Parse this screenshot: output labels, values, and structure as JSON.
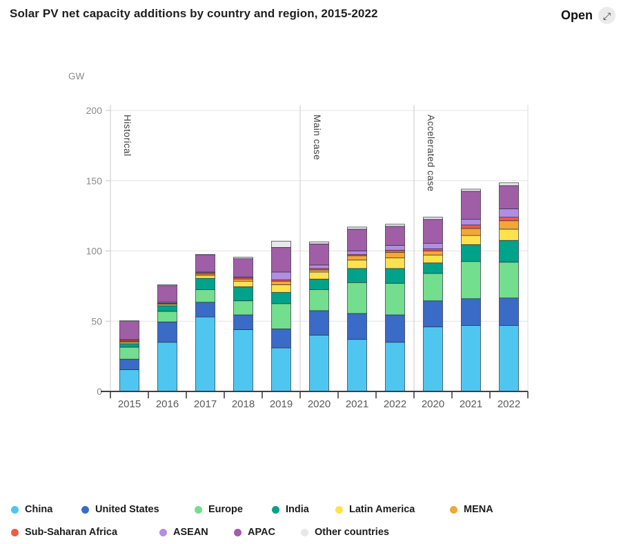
{
  "header": {
    "title": "Solar PV net capacity additions by country and region, 2015-2022",
    "open_label": "Open",
    "open_icon": "⤢"
  },
  "chart_data": {
    "type": "bar",
    "stacked": true,
    "title": "Solar PV net capacity additions by country and region, 2015-2022",
    "unit_label": "GW",
    "ylim": [
      0,
      200
    ],
    "yticks": [
      0,
      50,
      100,
      150,
      200
    ],
    "grid": true,
    "groups": [
      {
        "label": "Historical",
        "categories": [
          "2015",
          "2016",
          "2017",
          "2018",
          "2019"
        ]
      },
      {
        "label": "Main case",
        "categories": [
          "2020",
          "2021",
          "2022"
        ]
      },
      {
        "label": "Accelerated case",
        "categories": [
          "2020",
          "2021",
          "2022"
        ]
      }
    ],
    "categories": [
      "2015",
      "2016",
      "2017",
      "2018",
      "2019",
      "2020",
      "2021",
      "2022",
      "2020",
      "2021",
      "2022"
    ],
    "series": [
      {
        "name": "China",
        "color": "#4fc6f0",
        "values": [
          15.5,
          35,
          53,
          44,
          31,
          40,
          37,
          35,
          46,
          47,
          47
        ]
      },
      {
        "name": "United States",
        "color": "#3a6bc6",
        "values": [
          7.5,
          14.5,
          10.5,
          10.5,
          13.5,
          17.5,
          18.5,
          19.5,
          18.5,
          19,
          19.5
        ]
      },
      {
        "name": "Europe",
        "color": "#72de8e",
        "values": [
          8.5,
          7.5,
          9,
          10,
          18,
          15,
          22,
          22.5,
          19.5,
          26.5,
          25.5
        ]
      },
      {
        "name": "India",
        "color": "#00a28a",
        "values": [
          2.5,
          4,
          8,
          10,
          8,
          7.5,
          10,
          10.5,
          7.5,
          12,
          15.5
        ]
      },
      {
        "name": "Latin America",
        "color": "#ffe14d",
        "values": [
          1,
          1,
          2,
          4,
          5.5,
          5,
          6,
          7.5,
          5.5,
          6.5,
          8
        ]
      },
      {
        "name": "MENA",
        "color": "#f2a736",
        "values": [
          0.5,
          0.5,
          1,
          1.5,
          2.5,
          1.5,
          3,
          4,
          3,
          5,
          6
        ]
      },
      {
        "name": "Sub-Saharan Africa",
        "color": "#ee5b41",
        "values": [
          1,
          0.5,
          1,
          1,
          1,
          1,
          1,
          1.5,
          1.5,
          2.5,
          2.5
        ]
      },
      {
        "name": "ASEAN",
        "color": "#b28de3",
        "values": [
          0.3,
          0.8,
          0.5,
          0.5,
          5.5,
          2.5,
          2.5,
          3.5,
          4,
          4,
          6
        ]
      },
      {
        "name": "APAC",
        "color": "#a05ea6",
        "values": [
          13,
          11.5,
          12,
          13,
          17.5,
          15,
          15.5,
          13.5,
          17,
          20,
          16.5
        ]
      },
      {
        "name": "Other countries",
        "color": "#e8e8e8",
        "values": [
          0.5,
          0.7,
          0.5,
          1,
          4.5,
          1.5,
          1.5,
          1.5,
          1.5,
          1.5,
          2
        ]
      }
    ],
    "legend_rows": [
      [
        "China",
        "United States",
        "Europe",
        "India",
        "Latin America",
        "MENA"
      ],
      [
        "Sub-Saharan Africa",
        "ASEAN",
        "APAC",
        "Other countries"
      ]
    ]
  }
}
